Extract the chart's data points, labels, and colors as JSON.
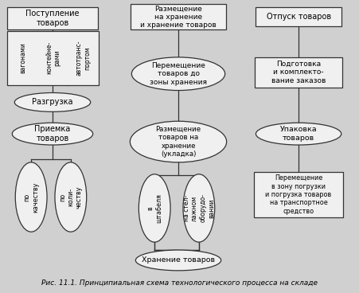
{
  "bg_color": "#d0d0d0",
  "box_fc": "#f0f0f0",
  "box_ec": "#333333",
  "ell_fc": "#f0f0f0",
  "ell_ec": "#333333",
  "lc": "#333333",
  "caption": "Рис. 11.1. Принципиальная схема технологического процесса на складе",
  "cap_fs": 6.5,
  "table_cols": [
    "вагонами",
    "контейне-\nрами",
    "автотранс-\nпортом"
  ]
}
